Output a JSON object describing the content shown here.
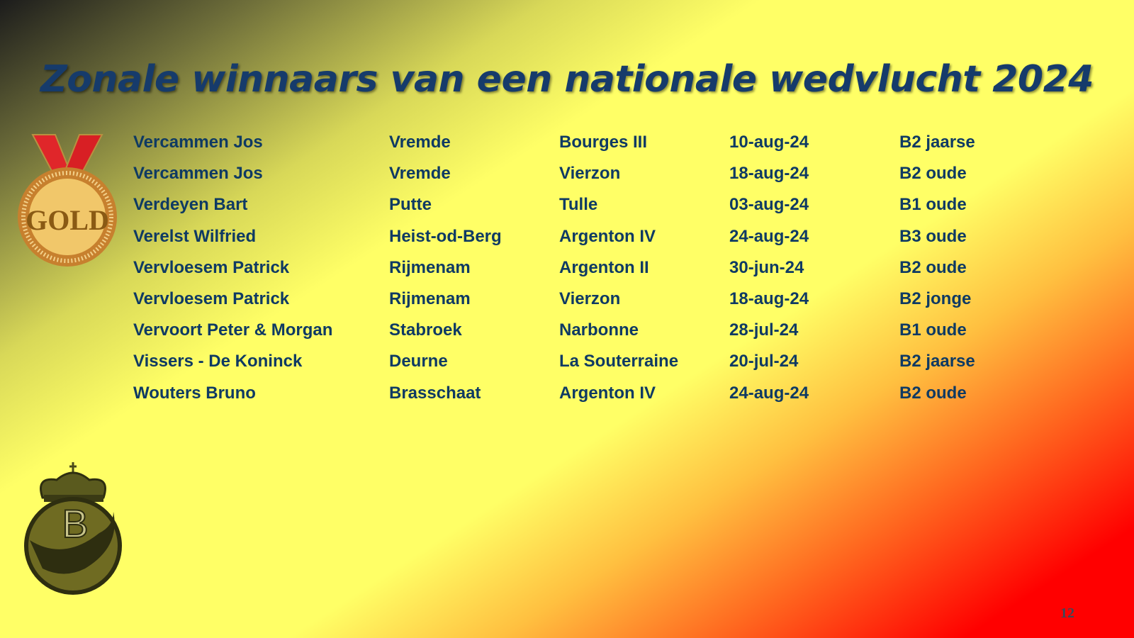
{
  "title": "Zonale winnaars van een nationale wedvlucht 2024",
  "medal": {
    "text": "GOLD",
    "icon": "gold-medal-icon"
  },
  "logo": {
    "letter": "B",
    "icon": "crown-pigeon-logo"
  },
  "rows": [
    [
      "Vercammen Jos",
      "Vremde",
      "Bourges III",
      "10-aug-24",
      "B2 jaarse"
    ],
    [
      "Vercammen Jos",
      "Vremde",
      "Vierzon",
      "18-aug-24",
      "B2 oude"
    ],
    [
      "Verdeyen Bart",
      "Putte",
      "Tulle",
      "03-aug-24",
      "B1 oude"
    ],
    [
      "Verelst Wilfried",
      "Heist-od-Berg",
      "Argenton IV",
      "24-aug-24",
      "B3 oude"
    ],
    [
      "Vervloesem Patrick",
      "Rijmenam",
      "Argenton II",
      "30-jun-24",
      "B2 oude"
    ],
    [
      "Vervloesem Patrick",
      "Rijmenam",
      "Vierzon",
      "18-aug-24",
      "B2 jonge"
    ],
    [
      "Vervoort Peter & Morgan",
      "Stabroek",
      "Narbonne",
      "28-jul-24",
      "B1 oude"
    ],
    [
      "Vissers - De Koninck",
      "Deurne",
      "La Souterraine",
      "20-jul-24",
      "B2 jaarse"
    ],
    [
      "Wouters Bruno",
      "Brasschaat",
      "Argenton IV",
      "24-aug-24",
      "B2 oude"
    ]
  ],
  "page_number": "12",
  "colors": {
    "text": "#0f3a63",
    "title": "#163b6b"
  }
}
